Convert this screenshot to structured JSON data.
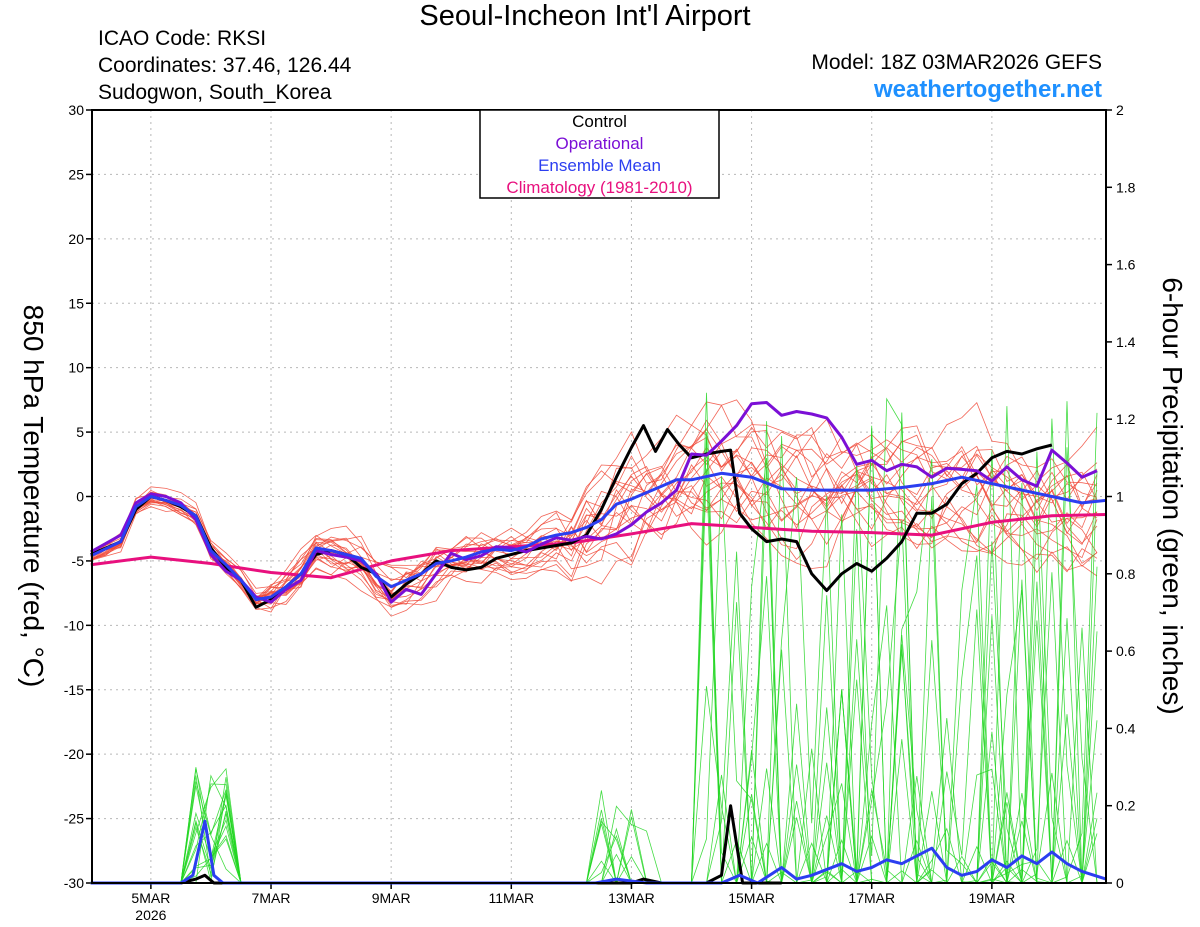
{
  "header": {
    "title": "Seoul-Incheon Int'l Airport",
    "icao": "ICAO Code: RKSI",
    "coordinates": "Coordinates: 37.46, 126.44",
    "region": "Sudogwon, South_Korea",
    "model": "Model: 18Z 03MAR2026 GEFS",
    "website": "weathertogether.net"
  },
  "colors": {
    "control": "#000000",
    "operational": "#7b0fd6",
    "ensemble_mean": "#2b3ef0",
    "climatology": "#e8107e",
    "members_temp": "#f04a3a",
    "members_precip": "#22d622",
    "website": "#1e90ff"
  },
  "chart_data": {
    "type": "line",
    "title": "Seoul-Incheon Int'l Airport",
    "ylabel": "850 hPa Temperature (red, °C)",
    "y2label": "6-hour Precipitation (green, inches)",
    "ylim": [
      -30,
      30
    ],
    "y2lim": [
      0,
      2
    ],
    "xlim_days": [
      -0.98,
      15.9
    ],
    "yticks": [
      30,
      25,
      20,
      15,
      10,
      5,
      0,
      -5,
      -10,
      -15,
      -20,
      -25,
      -30
    ],
    "y2ticks": [
      "2",
      "1.8",
      "1.6",
      "1.4",
      "1.2",
      "1",
      "0.8",
      "0.6",
      "0.4",
      "0.2",
      "0"
    ],
    "xticks": [
      {
        "label": "5MAR",
        "day": 0
      },
      {
        "label": "7MAR",
        "day": 2
      },
      {
        "label": "9MAR",
        "day": 4
      },
      {
        "label": "11MAR",
        "day": 6
      },
      {
        "label": "13MAR",
        "day": 8
      },
      {
        "label": "15MAR",
        "day": 10
      },
      {
        "label": "17MAR",
        "day": 12
      },
      {
        "label": "19MAR",
        "day": 14
      }
    ],
    "year_label": "2026",
    "legend": [
      "Control",
      "Operational",
      "Ensemble Mean",
      "Climatology (1981-2010)"
    ],
    "legend_position": "top-center",
    "series": [
      {
        "name": "Control",
        "kind": "temp",
        "points": [
          [
            -1,
            -4.5
          ],
          [
            -0.5,
            -3.5
          ],
          [
            -0.25,
            -1
          ],
          [
            0,
            0
          ],
          [
            0.25,
            -0.3
          ],
          [
            0.5,
            -0.8
          ],
          [
            0.75,
            -1.5
          ],
          [
            1,
            -4
          ],
          [
            1.25,
            -5.5
          ],
          [
            1.5,
            -6.5
          ],
          [
            1.75,
            -8.6
          ],
          [
            2,
            -8
          ],
          [
            2.25,
            -7
          ],
          [
            2.5,
            -6
          ],
          [
            2.75,
            -4.5
          ],
          [
            3,
            -4.2
          ],
          [
            3.25,
            -4.5
          ],
          [
            3.5,
            -5.5
          ],
          [
            3.75,
            -6
          ],
          [
            4,
            -7.8
          ],
          [
            4.25,
            -6.8
          ],
          [
            4.5,
            -6
          ],
          [
            4.75,
            -5
          ],
          [
            5,
            -5.5
          ],
          [
            5.25,
            -5.7
          ],
          [
            5.5,
            -5.5
          ],
          [
            5.75,
            -4.8
          ],
          [
            6,
            -4.5
          ],
          [
            6.25,
            -4.2
          ],
          [
            6.5,
            -4
          ],
          [
            6.75,
            -3.8
          ],
          [
            7,
            -3.6
          ],
          [
            7.25,
            -3
          ],
          [
            7.5,
            -1
          ],
          [
            7.75,
            1.5
          ],
          [
            8,
            3.8
          ],
          [
            8.2,
            5.5
          ],
          [
            8.4,
            3.5
          ],
          [
            8.6,
            5.2
          ],
          [
            8.8,
            4
          ],
          [
            9,
            3
          ],
          [
            9.25,
            3.3
          ],
          [
            9.5,
            3.5
          ],
          [
            9.65,
            3.6
          ],
          [
            9.8,
            -1.3
          ],
          [
            10,
            -2.5
          ],
          [
            10.25,
            -3.5
          ],
          [
            10.5,
            -3.3
          ],
          [
            10.75,
            -3.5
          ],
          [
            11,
            -6
          ],
          [
            11.25,
            -7.3
          ],
          [
            11.5,
            -6
          ],
          [
            11.75,
            -5.2
          ],
          [
            12,
            -5.8
          ],
          [
            12.25,
            -4.8
          ],
          [
            12.5,
            -3.5
          ],
          [
            12.75,
            -1.3
          ],
          [
            13,
            -1.3
          ],
          [
            13.25,
            -0.6
          ],
          [
            13.5,
            1
          ],
          [
            13.75,
            1.8
          ],
          [
            14,
            3
          ],
          [
            14.25,
            3.5
          ],
          [
            14.5,
            3.3
          ],
          [
            14.75,
            3.7
          ],
          [
            15,
            4
          ]
        ]
      },
      {
        "name": "Operational",
        "kind": "temp",
        "points": [
          [
            -1,
            -4.3
          ],
          [
            -0.5,
            -3
          ],
          [
            -0.25,
            -0.5
          ],
          [
            0,
            0.2
          ],
          [
            0.25,
            0
          ],
          [
            0.5,
            -0.5
          ],
          [
            0.75,
            -1.8
          ],
          [
            1,
            -4.5
          ],
          [
            1.25,
            -5.8
          ],
          [
            1.5,
            -6.5
          ],
          [
            1.75,
            -7.8
          ],
          [
            2,
            -8.2
          ],
          [
            2.25,
            -7.2
          ],
          [
            2.5,
            -6.5
          ],
          [
            2.75,
            -4.2
          ],
          [
            3,
            -4.5
          ],
          [
            3.25,
            -4.7
          ],
          [
            3.5,
            -5
          ],
          [
            3.75,
            -6
          ],
          [
            4,
            -8.2
          ],
          [
            4.25,
            -7.2
          ],
          [
            4.5,
            -7.6
          ],
          [
            4.75,
            -6
          ],
          [
            5,
            -4.4
          ],
          [
            5.25,
            -4.9
          ],
          [
            5.5,
            -4.6
          ],
          [
            5.75,
            -3.9
          ],
          [
            6,
            -4
          ],
          [
            6.25,
            -4.3
          ],
          [
            6.5,
            -3.7
          ],
          [
            6.75,
            -3.2
          ],
          [
            7,
            -3.4
          ],
          [
            7.25,
            -3.1
          ],
          [
            7.5,
            -3.3
          ],
          [
            7.75,
            -2.9
          ],
          [
            8,
            -2.2
          ],
          [
            8.25,
            -1.2
          ],
          [
            8.5,
            -0.5
          ],
          [
            8.75,
            0.5
          ],
          [
            9,
            3.3
          ],
          [
            9.25,
            3.2
          ],
          [
            9.5,
            4.3
          ],
          [
            9.75,
            5.5
          ],
          [
            10,
            7.2
          ],
          [
            10.25,
            7.3
          ],
          [
            10.5,
            6.3
          ],
          [
            10.75,
            6.6
          ],
          [
            11,
            6.4
          ],
          [
            11.25,
            6.1
          ],
          [
            11.5,
            4.6
          ],
          [
            11.75,
            2.5
          ],
          [
            12,
            2.8
          ],
          [
            12.25,
            2
          ],
          [
            12.5,
            2.5
          ],
          [
            12.75,
            2.3
          ],
          [
            13,
            1.5
          ],
          [
            13.25,
            2.2
          ],
          [
            13.5,
            2.1
          ],
          [
            13.75,
            2
          ],
          [
            14,
            1.2
          ],
          [
            14.25,
            2.3
          ],
          [
            14.5,
            1.3
          ],
          [
            14.75,
            0.8
          ],
          [
            15,
            3.6
          ],
          [
            15.25,
            2.6
          ],
          [
            15.5,
            1.5
          ],
          [
            15.75,
            2
          ]
        ]
      },
      {
        "name": "Ensemble Mean",
        "kind": "temp",
        "points": [
          [
            -1,
            -4.6
          ],
          [
            -0.5,
            -3.5
          ],
          [
            -0.25,
            -0.8
          ],
          [
            0,
            0
          ],
          [
            0.25,
            -0.3
          ],
          [
            0.5,
            -0.7
          ],
          [
            0.75,
            -1.5
          ],
          [
            1,
            -4.2
          ],
          [
            1.25,
            -5.3
          ],
          [
            1.5,
            -6.5
          ],
          [
            1.75,
            -8
          ],
          [
            2,
            -7.8
          ],
          [
            2.25,
            -7
          ],
          [
            2.5,
            -6
          ],
          [
            2.75,
            -4
          ],
          [
            3,
            -4.2
          ],
          [
            3.25,
            -4.5
          ],
          [
            3.5,
            -4.8
          ],
          [
            3.75,
            -6.2
          ],
          [
            4,
            -7
          ],
          [
            4.25,
            -6.5
          ],
          [
            4.5,
            -6
          ],
          [
            4.75,
            -5.2
          ],
          [
            5,
            -5
          ],
          [
            5.25,
            -4.7
          ],
          [
            5.5,
            -4.3
          ],
          [
            5.75,
            -4.1
          ],
          [
            6,
            -4.2
          ],
          [
            6.25,
            -3.9
          ],
          [
            6.5,
            -3.3
          ],
          [
            6.75,
            -3
          ],
          [
            7,
            -2.8
          ],
          [
            7.25,
            -2.4
          ],
          [
            7.5,
            -1.8
          ],
          [
            7.75,
            -0.6
          ],
          [
            8,
            -0.2
          ],
          [
            8.25,
            0.3
          ],
          [
            8.5,
            0.8
          ],
          [
            8.75,
            1.3
          ],
          [
            9,
            1.3
          ],
          [
            9.5,
            1.8
          ],
          [
            10,
            1.5
          ],
          [
            10.5,
            0.6
          ],
          [
            11,
            0.5
          ],
          [
            11.5,
            0.5
          ],
          [
            12,
            0.5
          ],
          [
            12.5,
            0.7
          ],
          [
            13,
            1
          ],
          [
            13.5,
            1.5
          ],
          [
            14,
            1
          ],
          [
            14.5,
            0.5
          ],
          [
            15,
            0
          ],
          [
            15.5,
            -0.5
          ],
          [
            15.9,
            -0.3
          ]
        ]
      },
      {
        "name": "Climatology (1981-2010)",
        "kind": "temp",
        "points": [
          [
            -1,
            -5.3
          ],
          [
            0,
            -4.7
          ],
          [
            1,
            -5.2
          ],
          [
            2,
            -5.9
          ],
          [
            3,
            -6.3
          ],
          [
            4,
            -5
          ],
          [
            5,
            -4.2
          ],
          [
            6,
            -3.9
          ],
          [
            7,
            -3.6
          ],
          [
            8,
            -2.9
          ],
          [
            9,
            -2.1
          ],
          [
            10,
            -2.4
          ],
          [
            11,
            -2.7
          ],
          [
            12,
            -2.8
          ],
          [
            13,
            -3
          ],
          [
            14,
            -2
          ],
          [
            15,
            -1.5
          ],
          [
            15.9,
            -1.4
          ]
        ]
      },
      {
        "name": "Control",
        "kind": "precip",
        "points": [
          [
            -1,
            0
          ],
          [
            0.5,
            0
          ],
          [
            0.75,
            0.01
          ],
          [
            0.9,
            0.02
          ],
          [
            1.05,
            0
          ],
          [
            1.5,
            0
          ],
          [
            7.5,
            0
          ],
          [
            8,
            0
          ],
          [
            8.2,
            0.01
          ],
          [
            8.5,
            0
          ],
          [
            9,
            0
          ],
          [
            9.25,
            0
          ],
          [
            9.5,
            0.02
          ],
          [
            9.65,
            0.2
          ],
          [
            9.85,
            0
          ],
          [
            10.5,
            0
          ]
        ]
      },
      {
        "name": "Ensemble Mean",
        "kind": "precip",
        "points": [
          [
            -1,
            0
          ],
          [
            0.5,
            0
          ],
          [
            0.7,
            0.02
          ],
          [
            0.9,
            0.16
          ],
          [
            1.05,
            0.02
          ],
          [
            1.2,
            0
          ],
          [
            5.5,
            0
          ],
          [
            7.4,
            0
          ],
          [
            7.75,
            0.01
          ],
          [
            8.25,
            0
          ],
          [
            9.5,
            0
          ],
          [
            9.8,
            0.02
          ],
          [
            10.1,
            0
          ],
          [
            10.5,
            0.04
          ],
          [
            10.75,
            0.01
          ],
          [
            11,
            0.02
          ],
          [
            11.5,
            0.05
          ],
          [
            11.75,
            0.03
          ],
          [
            12,
            0.04
          ],
          [
            12.25,
            0.06
          ],
          [
            12.5,
            0.05
          ],
          [
            12.75,
            0.07
          ],
          [
            13,
            0.09
          ],
          [
            13.25,
            0.04
          ],
          [
            13.5,
            0.02
          ],
          [
            13.75,
            0.03
          ],
          [
            14,
            0.06
          ],
          [
            14.25,
            0.04
          ],
          [
            14.5,
            0.07
          ],
          [
            14.75,
            0.05
          ],
          [
            15,
            0.08
          ],
          [
            15.25,
            0.05
          ],
          [
            15.5,
            0.03
          ],
          [
            15.9,
            0.01
          ]
        ]
      }
    ]
  }
}
